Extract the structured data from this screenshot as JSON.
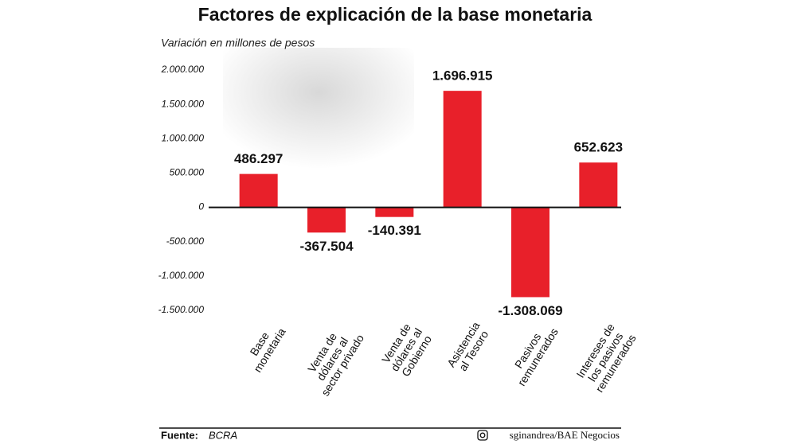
{
  "chart_data": {
    "type": "bar",
    "title": "Factores de explicación de la base monetaria",
    "subtitle": "Variación en millones de pesos",
    "categories": [
      "Base\nmonetaria",
      "Venta de\ndólares al\nsector privado",
      "Venta de\ndólares al\nGobierno",
      "Asistencia\nal Tesoro",
      "Pasivos\nremunerados",
      "Intereses de\nlos pasivos\nremunerados"
    ],
    "values": [
      486297,
      -367504,
      -140391,
      1696915,
      -1308069,
      652623
    ],
    "value_labels": [
      "486.297",
      "-367.504",
      "-140.391",
      "1.696.915",
      "-1.308.069",
      "652.623"
    ],
    "color": "#e8202a",
    "ylim": [
      -1500000,
      2000000
    ],
    "yticks": [
      {
        "value": 2000000,
        "label": "2.000.000"
      },
      {
        "value": 1500000,
        "label": "1.500.000"
      },
      {
        "value": 1000000,
        "label": "1.000.000"
      },
      {
        "value": 500000,
        "label": "500.000"
      },
      0,
      {
        "value": -500000,
        "label": "-500.000"
      },
      {
        "value": -1000000,
        "label": "-1.000.000"
      },
      {
        "value": -1500000,
        "label": "-1.500.000"
      }
    ]
  },
  "footer": {
    "source_label": "Fuente:",
    "source": "BCRA",
    "credit": "sginandrea/BAE Negocios"
  }
}
